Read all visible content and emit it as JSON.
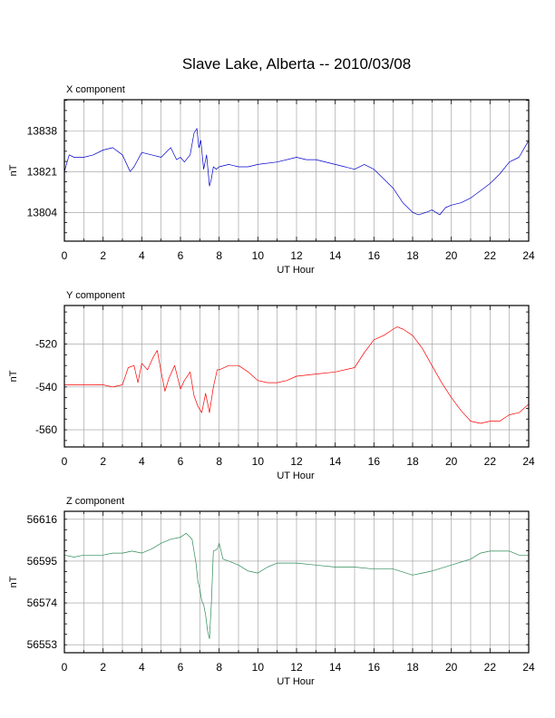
{
  "title": "Slave Lake, Alberta -- 2010/03/08",
  "chart_data": [
    {
      "type": "line",
      "title": "X component",
      "xlabel": "UT Hour",
      "ylabel": "nT",
      "xlim": [
        0,
        24
      ],
      "ylim": [
        13792,
        13851
      ],
      "x_ticks": [
        0,
        2,
        4,
        6,
        8,
        10,
        12,
        14,
        16,
        18,
        20,
        22,
        24
      ],
      "y_ticks": [
        13804,
        13821,
        13838
      ],
      "grid": true,
      "color": "#0000cc",
      "series": [
        {
          "x": [
            0,
            0.25,
            0.5,
            1,
            1.5,
            2,
            2.5,
            3,
            3.4,
            3.6,
            4,
            4.5,
            5,
            5.5,
            5.8,
            6,
            6.2,
            6.5,
            6.7,
            6.85,
            6.95,
            7.05,
            7.2,
            7.35,
            7.5,
            7.6,
            7.7,
            7.85,
            8,
            8.5,
            9,
            9.5,
            10,
            11,
            12,
            12.5,
            13,
            14,
            14.5,
            15,
            15.5,
            16,
            16.5,
            17,
            17.5,
            18,
            18.3,
            18.7,
            19,
            19.4,
            19.7,
            20,
            20.5,
            21,
            21.5,
            22,
            22.5,
            23,
            23.5,
            24
          ],
          "y": [
            13821,
            13828,
            13827,
            13827,
            13828,
            13830,
            13831,
            13828,
            13821,
            13823,
            13829,
            13828,
            13827,
            13831,
            13826,
            13827,
            13825,
            13828,
            13837,
            13839,
            13831,
            13834,
            13822,
            13828,
            13815,
            13818,
            13823,
            13822,
            13823,
            13824,
            13823,
            13823,
            13824,
            13825,
            13827,
            13826,
            13826,
            13824,
            13823,
            13822,
            13824,
            13822,
            13818,
            13814,
            13808,
            13804,
            13803,
            13804,
            13805,
            13803,
            13806,
            13807,
            13808,
            13810,
            13813,
            13816,
            13820,
            13825,
            13827,
            13834
          ]
        }
      ]
    },
    {
      "type": "line",
      "title": "Y component",
      "xlabel": "UT Hour",
      "ylabel": "nT",
      "xlim": [
        0,
        24
      ],
      "ylim": [
        -568,
        -502
      ],
      "x_ticks": [
        0,
        2,
        4,
        6,
        8,
        10,
        12,
        14,
        16,
        18,
        20,
        22,
        24
      ],
      "y_ticks": [
        -560,
        -540,
        -520
      ],
      "grid": true,
      "color": "#ff0000",
      "series": [
        {
          "x": [
            0,
            0.5,
            1,
            1.5,
            2,
            2.5,
            3,
            3.3,
            3.6,
            3.8,
            4,
            4.3,
            4.6,
            4.8,
            5,
            5.2,
            5.4,
            5.7,
            6,
            6.2,
            6.5,
            6.7,
            6.9,
            7.1,
            7.3,
            7.5,
            7.7,
            7.9,
            8,
            8.5,
            9,
            9.5,
            10,
            10.5,
            11,
            11.5,
            12,
            13,
            14,
            15,
            15.5,
            16,
            16.5,
            17,
            17.2,
            17.5,
            18,
            18.5,
            19,
            19.5,
            20,
            20.5,
            21,
            21.5,
            22,
            22.5,
            23,
            23.5,
            24
          ],
          "y": [
            -539,
            -539,
            -539,
            -539,
            -539,
            -540,
            -539,
            -531,
            -530,
            -538,
            -529,
            -532,
            -526,
            -523,
            -533,
            -542,
            -536,
            -530,
            -541,
            -537,
            -533,
            -544,
            -549,
            -552,
            -543,
            -552,
            -540,
            -532,
            -532,
            -530,
            -530,
            -533,
            -537,
            -538,
            -538,
            -537,
            -535,
            -534,
            -533,
            -531,
            -524,
            -518,
            -516,
            -513,
            -512,
            -513,
            -516,
            -522,
            -530,
            -538,
            -545,
            -551,
            -556,
            -557,
            -556,
            -556,
            -553,
            -552,
            -548
          ]
        }
      ]
    },
    {
      "type": "line",
      "title": "Z component",
      "xlabel": "UT Hour",
      "ylabel": "nT",
      "xlim": [
        0,
        24
      ],
      "ylim": [
        56549,
        56620
      ],
      "x_ticks": [
        0,
        2,
        4,
        6,
        8,
        10,
        12,
        14,
        16,
        18,
        20,
        22,
        24
      ],
      "y_ticks": [
        56553,
        56574,
        56595,
        56616
      ],
      "grid": true,
      "color": "#2e8b57",
      "series": [
        {
          "x": [
            0,
            0.5,
            1,
            1.5,
            2,
            2.5,
            3,
            3.5,
            4,
            4.5,
            5,
            5.5,
            6,
            6.3,
            6.6,
            6.8,
            6.9,
            7,
            7.1,
            7.2,
            7.3,
            7.4,
            7.5,
            7.6,
            7.7,
            7.9,
            8,
            8.2,
            8.5,
            9,
            9.5,
            10,
            10.5,
            11,
            12,
            13,
            14,
            15,
            16,
            17,
            18,
            18.5,
            19,
            20,
            21,
            21.5,
            22,
            22.5,
            23,
            23.5,
            24
          ],
          "y": [
            56598,
            56597,
            56598,
            56598,
            56598,
            56599,
            56599,
            56600,
            56599,
            56601,
            56604,
            56606,
            56607,
            56609,
            56606,
            56594,
            56585,
            56581,
            56575,
            56573,
            56568,
            56560,
            56556,
            56574,
            56600,
            56601,
            56604,
            56596,
            56595,
            56593,
            56590,
            56589,
            56592,
            56594,
            56594,
            56593,
            56592,
            56592,
            56591,
            56591,
            56588,
            56589,
            56590,
            56593,
            56596,
            56599,
            56600,
            56600,
            56600,
            56598,
            56598
          ]
        }
      ]
    }
  ]
}
